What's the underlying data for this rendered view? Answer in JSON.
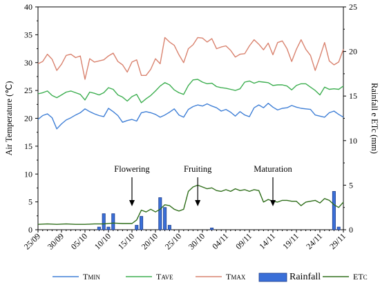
{
  "chart_data": {
    "type": "line",
    "title": "",
    "y_left": {
      "label": "Air Temperature (℃)",
      "range": [
        0,
        40
      ],
      "ticks": [
        0,
        5,
        10,
        15,
        20,
        25,
        30,
        35,
        40
      ]
    },
    "y_right": {
      "label": "Rainfall e ETc (mm)",
      "range": [
        0,
        25
      ],
      "ticks": [
        0,
        5,
        10,
        15,
        20,
        25
      ]
    },
    "x": {
      "start": "2020-09-25",
      "end": "2020-11-30",
      "tick_labels": [
        "25/09",
        "30/09",
        "05/10",
        "10/10",
        "15/10",
        "20/10",
        "25/10",
        "30/10",
        "04/11",
        "09/11",
        "14/11",
        "19/11",
        "24/11",
        "29/11"
      ]
    },
    "annotations": [
      {
        "text": "Flowering",
        "day": 20
      },
      {
        "text": "Fruiting",
        "day": 34
      },
      {
        "text": "Maturation",
        "day": 50
      }
    ],
    "legend": {
      "position": "bottom",
      "items": [
        {
          "series": "tmin",
          "main": "T",
          "sub": "MIN"
        },
        {
          "series": "tave",
          "main": "T",
          "sub": "AVE"
        },
        {
          "series": "tmax",
          "main": "T",
          "sub": "MAX"
        },
        {
          "series": "rainfall",
          "main": "Rainfall",
          "sub": ""
        },
        {
          "series": "etc",
          "main": "ET",
          "sub": "C"
        }
      ]
    },
    "series": [
      {
        "id": "tmax",
        "axis": "left",
        "kind": "line",
        "color": "#d9826e",
        "x": [
          0,
          1,
          2,
          3,
          4,
          5,
          6,
          7,
          8,
          9,
          10,
          11,
          12,
          13,
          14,
          15,
          16,
          17,
          18,
          19,
          20,
          21,
          22,
          23,
          24,
          25,
          26,
          27,
          28,
          29,
          30,
          31,
          32,
          33,
          34,
          35,
          36,
          37,
          38,
          39,
          40,
          41,
          42,
          43,
          44,
          45,
          46,
          47,
          48,
          49,
          50,
          51,
          52,
          53,
          54,
          55,
          56,
          57,
          58,
          59,
          60,
          61,
          62,
          63,
          64,
          65
        ],
        "y": [
          29.8,
          30.2,
          31.5,
          30.6,
          28.6,
          29.7,
          31.3,
          31.5,
          30.9,
          31.2,
          27.0,
          30.7,
          30.1,
          30.3,
          30.5,
          31.2,
          31.7,
          30.2,
          29.6,
          28.3,
          30.1,
          30.5,
          27.7,
          27.7,
          28.8,
          30.7,
          29.8,
          34.5,
          33.7,
          33.1,
          31.4,
          30.0,
          32.5,
          33.2,
          34.5,
          34.4,
          33.7,
          34.3,
          32.5,
          32.8,
          33.0,
          32.2,
          31.0,
          31.5,
          31.6,
          33.0,
          34.1,
          33.3,
          32.3,
          33.5,
          31.4,
          33.6,
          33.9,
          32.5,
          30.2,
          32.4,
          34.1,
          32.4,
          31.3,
          28.6,
          31.0,
          33.6,
          30.3,
          29.6,
          30.1,
          32.4
        ]
      },
      {
        "id": "tave",
        "axis": "left",
        "kind": "line",
        "color": "#3cae4f",
        "x": [
          0,
          1,
          2,
          3,
          4,
          5,
          6,
          7,
          8,
          9,
          10,
          11,
          12,
          13,
          14,
          15,
          16,
          17,
          18,
          19,
          20,
          21,
          22,
          23,
          24,
          25,
          26,
          27,
          28,
          29,
          30,
          31,
          32,
          33,
          34,
          35,
          36,
          37,
          38,
          39,
          40,
          41,
          42,
          43,
          44,
          45,
          46,
          47,
          48,
          49,
          50,
          51,
          52,
          53,
          54,
          55,
          56,
          57,
          58,
          59,
          60,
          61,
          62,
          63,
          64,
          65
        ],
        "y": [
          24.4,
          24.6,
          24.9,
          24.1,
          23.7,
          24.2,
          24.7,
          24.9,
          24.6,
          24.3,
          23.3,
          24.7,
          24.5,
          24.2,
          24.6,
          25.5,
          25.2,
          24.2,
          23.8,
          23.1,
          23.9,
          24.3,
          22.8,
          23.5,
          24.1,
          24.9,
          25.8,
          26.4,
          26.0,
          25.1,
          24.6,
          24.3,
          25.9,
          26.9,
          27.0,
          26.5,
          26.2,
          26.3,
          25.7,
          25.5,
          25.4,
          25.2,
          25.0,
          25.3,
          26.5,
          26.7,
          26.3,
          26.6,
          26.5,
          26.4,
          25.9,
          26.0,
          26.0,
          25.8,
          25.1,
          25.9,
          26.2,
          26.2,
          25.6,
          25.0,
          24.2,
          25.6,
          25.2,
          25.3,
          25.2,
          25.8
        ]
      },
      {
        "id": "tmin",
        "axis": "left",
        "kind": "line",
        "color": "#3f7fd6",
        "x": [
          0,
          1,
          2,
          3,
          4,
          5,
          6,
          7,
          8,
          9,
          10,
          11,
          12,
          13,
          14,
          15,
          16,
          17,
          18,
          19,
          20,
          21,
          22,
          23,
          24,
          25,
          26,
          27,
          28,
          29,
          30,
          31,
          32,
          33,
          34,
          35,
          36,
          37,
          38,
          39,
          40,
          41,
          42,
          43,
          44,
          45,
          46,
          47,
          48,
          49,
          50,
          51,
          52,
          53,
          54,
          55,
          56,
          57,
          58,
          59,
          60,
          61,
          62,
          63,
          64,
          65
        ],
        "y": [
          19.8,
          20.5,
          20.8,
          20.1,
          18.1,
          19.0,
          19.7,
          20.1,
          20.6,
          21.0,
          21.7,
          21.2,
          20.8,
          20.5,
          20.3,
          21.8,
          21.2,
          20.5,
          19.3,
          19.6,
          19.8,
          19.5,
          21.0,
          21.2,
          21.0,
          20.7,
          20.2,
          20.6,
          21.1,
          21.7,
          20.6,
          20.2,
          21.6,
          22.1,
          22.4,
          22.2,
          22.6,
          22.2,
          21.9,
          21.3,
          21.6,
          21.1,
          20.4,
          21.2,
          20.6,
          20.3,
          21.9,
          22.4,
          21.9,
          22.7,
          22.0,
          21.5,
          21.8,
          21.9,
          22.3,
          22.0,
          21.8,
          21.7,
          21.6,
          20.6,
          20.4,
          20.2,
          21.0,
          21.3,
          20.7,
          20.2
        ]
      },
      {
        "id": "rainfall",
        "axis": "right",
        "kind": "bar",
        "color": "#3a6fd8",
        "x": [
          13,
          14,
          15,
          16,
          21,
          22,
          26,
          27,
          28,
          29,
          37,
          63,
          64
        ],
        "y": [
          0.3,
          1.8,
          0.3,
          1.8,
          0.5,
          1.5,
          3.6,
          2.5,
          0.5,
          0.0,
          0.2,
          4.3,
          0.3
        ]
      },
      {
        "id": "etc",
        "axis": "right",
        "kind": "line",
        "color": "#2f6e1a",
        "x": [
          0,
          2,
          4,
          6,
          8,
          10,
          12,
          14,
          16,
          18,
          20,
          21,
          22,
          23,
          24,
          25,
          26,
          27,
          28,
          29,
          30,
          31,
          32,
          33,
          34,
          35,
          36,
          37,
          38,
          39,
          40,
          41,
          42,
          43,
          44,
          45,
          46,
          47,
          48,
          49,
          50,
          51,
          52,
          53,
          54,
          55,
          56,
          57,
          58,
          59,
          60,
          61,
          62,
          63,
          64,
          65
        ],
        "y": [
          0.6,
          0.65,
          0.6,
          0.65,
          0.6,
          0.6,
          0.65,
          0.65,
          0.75,
          0.7,
          0.7,
          1.1,
          2.2,
          2.0,
          2.3,
          2.0,
          2.3,
          2.8,
          2.7,
          2.3,
          2.1,
          2.3,
          4.3,
          4.8,
          5.0,
          4.8,
          4.6,
          4.7,
          4.4,
          4.3,
          4.5,
          4.3,
          4.6,
          4.4,
          4.5,
          4.3,
          4.5,
          4.4,
          3.1,
          3.4,
          3.2,
          3.1,
          3.3,
          3.3,
          3.2,
          3.2,
          2.7,
          3.1,
          3.2,
          3.3,
          3.0,
          3.5,
          3.3,
          2.8,
          2.5,
          3.1
        ]
      }
    ]
  }
}
